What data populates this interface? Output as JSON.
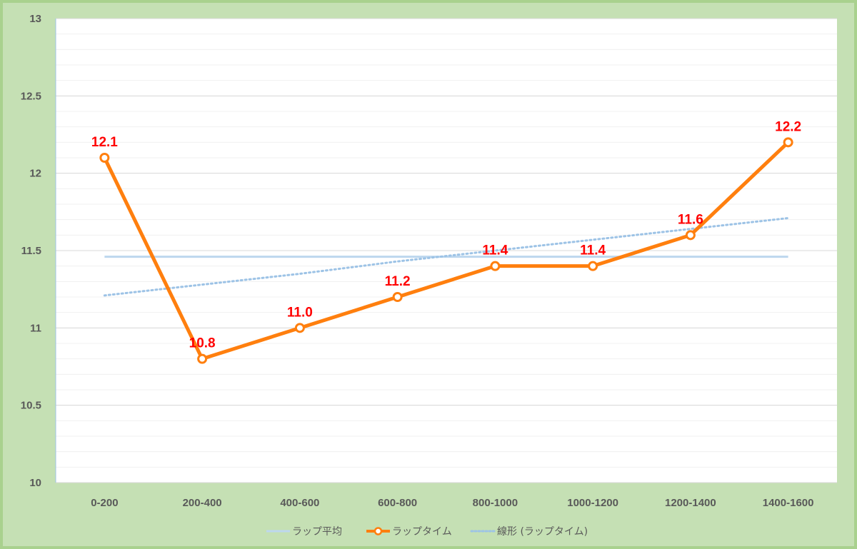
{
  "chart_data": {
    "type": "line",
    "categories": [
      "0-200",
      "200-400",
      "400-600",
      "600-800",
      "800-1000",
      "1000-1200",
      "1200-1400",
      "1400-1600"
    ],
    "ylim": [
      10,
      13
    ],
    "yticks": [
      "10",
      "10.5",
      "11",
      "11.5",
      "12",
      "12.5",
      "13"
    ],
    "ytick_values": [
      10,
      10.5,
      11,
      11.5,
      12,
      12.5,
      13
    ],
    "minor_grid_step": 0.1,
    "grid": true,
    "legend_position": "bottom",
    "series": [
      {
        "name": "ラップ平均",
        "role": "average",
        "values": [
          11.46,
          11.46,
          11.46,
          11.46,
          11.46,
          11.46,
          11.46,
          11.46
        ],
        "color": "#bdd7ee"
      },
      {
        "name": "ラップタイム",
        "role": "main",
        "values": [
          12.1,
          10.8,
          11.0,
          11.2,
          11.4,
          11.4,
          11.6,
          12.2
        ],
        "data_labels": [
          "12.1",
          "10.8",
          "11.0",
          "11.2",
          "11.4",
          "11.4",
          "11.6",
          "12.2"
        ],
        "color": "#ff7f0e"
      },
      {
        "name": "線形 (ラップタイム)",
        "role": "trend",
        "values": [
          11.21,
          11.28,
          11.35,
          11.43,
          11.5,
          11.57,
          11.64,
          11.71
        ],
        "color": "#9dc3e6"
      }
    ],
    "data_label_color": "#ff0000"
  }
}
